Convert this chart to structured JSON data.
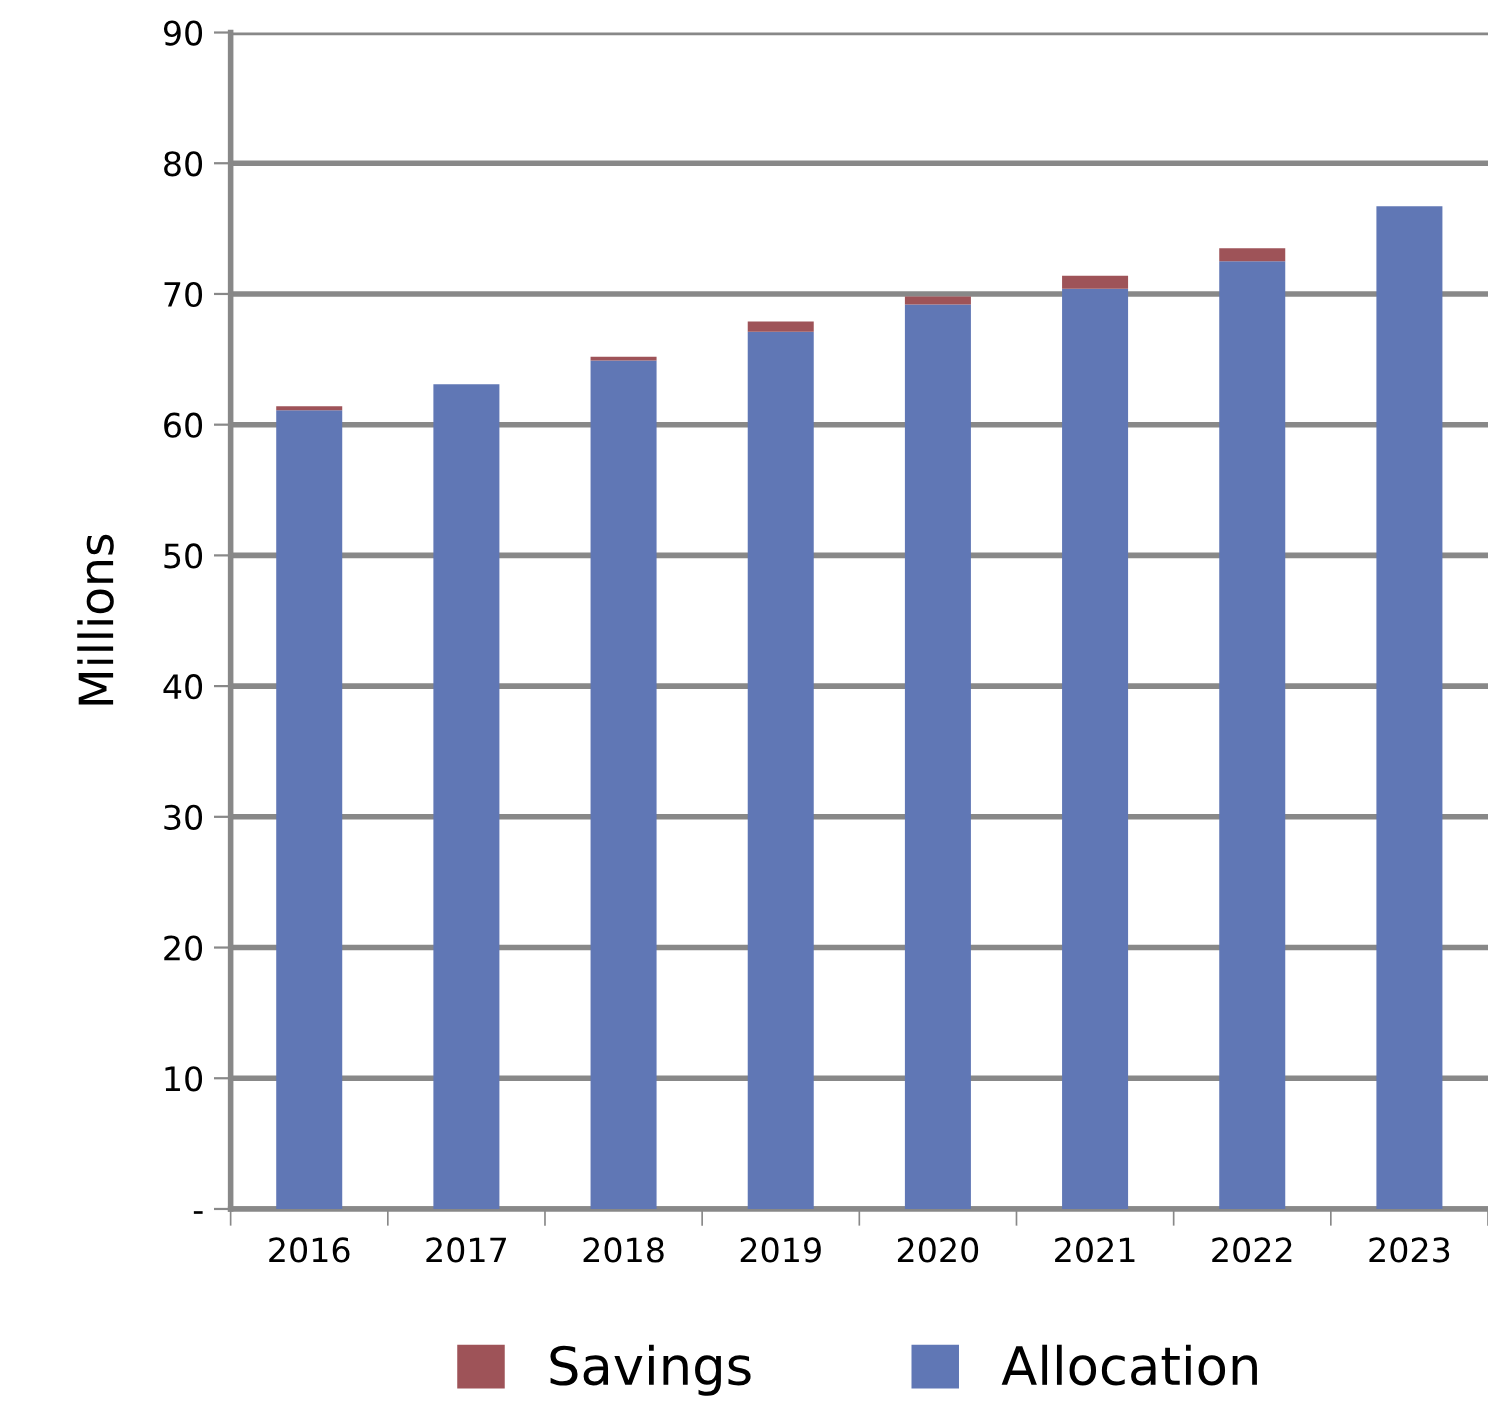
{
  "chart_data": {
    "type": "bar",
    "stacked": true,
    "ylabel": "Millions",
    "categories": [
      "2016",
      "2017",
      "2018",
      "2019",
      "2020",
      "2021",
      "2022",
      "2023"
    ],
    "series": [
      {
        "name": "Allocation",
        "color": "#6077b5",
        "values": [
          61.1,
          63.1,
          64.9,
          67.1,
          69.2,
          70.4,
          72.5,
          76.7
        ]
      },
      {
        "name": "Savings",
        "color": "#9e5358",
        "values": [
          0.3,
          0,
          0.3,
          0.8,
          0.6,
          1.0,
          1.0,
          0
        ]
      }
    ],
    "ylim": [
      0,
      90
    ],
    "yticks": [
      {
        "value": 0,
        "label": "-"
      },
      10,
      20,
      30,
      40,
      50,
      60,
      70,
      80,
      90
    ],
    "grid": "y",
    "legend": "bottom"
  }
}
